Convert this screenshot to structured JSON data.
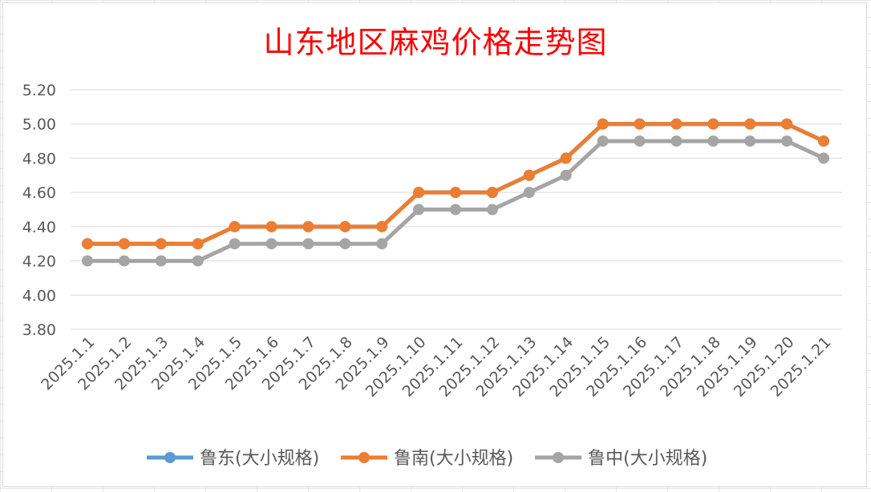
{
  "chart_data": {
    "type": "line",
    "title": "山东地区麻鸡价格走势图",
    "xlabel": "",
    "ylabel": "",
    "ylim": [
      3.8,
      5.2
    ],
    "ytick_step": 0.2,
    "yticks": [
      "3.80",
      "4.00",
      "4.20",
      "4.40",
      "4.60",
      "4.80",
      "5.00",
      "5.20"
    ],
    "grid": true,
    "legend_position": "bottom",
    "categories": [
      "2025.1.1",
      "2025.1.2",
      "2025.1.3",
      "2025.1.4",
      "2025.1.5",
      "2025.1.6",
      "2025.1.7",
      "2025.1.8",
      "2025.1.9",
      "2025.1.10",
      "2025.1.11",
      "2025.1.12",
      "2025.1.13",
      "2025.1.14",
      "2025.1.15",
      "2025.1.16",
      "2025.1.17",
      "2025.1.18",
      "2025.1.19",
      "2025.1.20",
      "2025.1.21"
    ],
    "series": [
      {
        "name": "鲁东(大小规格)",
        "color": "#5b9bd5",
        "values": [
          4.3,
          4.3,
          4.3,
          4.3,
          4.4,
          4.4,
          4.4,
          4.4,
          4.4,
          4.6,
          4.6,
          4.6,
          4.7,
          4.8,
          5.0,
          5.0,
          5.0,
          5.0,
          5.0,
          5.0,
          4.9
        ]
      },
      {
        "name": "鲁南(大小规格)",
        "color": "#ed7d31",
        "values": [
          4.3,
          4.3,
          4.3,
          4.3,
          4.4,
          4.4,
          4.4,
          4.4,
          4.4,
          4.6,
          4.6,
          4.6,
          4.7,
          4.8,
          5.0,
          5.0,
          5.0,
          5.0,
          5.0,
          5.0,
          4.9
        ]
      },
      {
        "name": "鲁中(大小规格)",
        "color": "#a5a5a5",
        "values": [
          4.2,
          4.2,
          4.2,
          4.2,
          4.3,
          4.3,
          4.3,
          4.3,
          4.3,
          4.5,
          4.5,
          4.5,
          4.6,
          4.7,
          4.9,
          4.9,
          4.9,
          4.9,
          4.9,
          4.9,
          4.8
        ]
      }
    ]
  }
}
